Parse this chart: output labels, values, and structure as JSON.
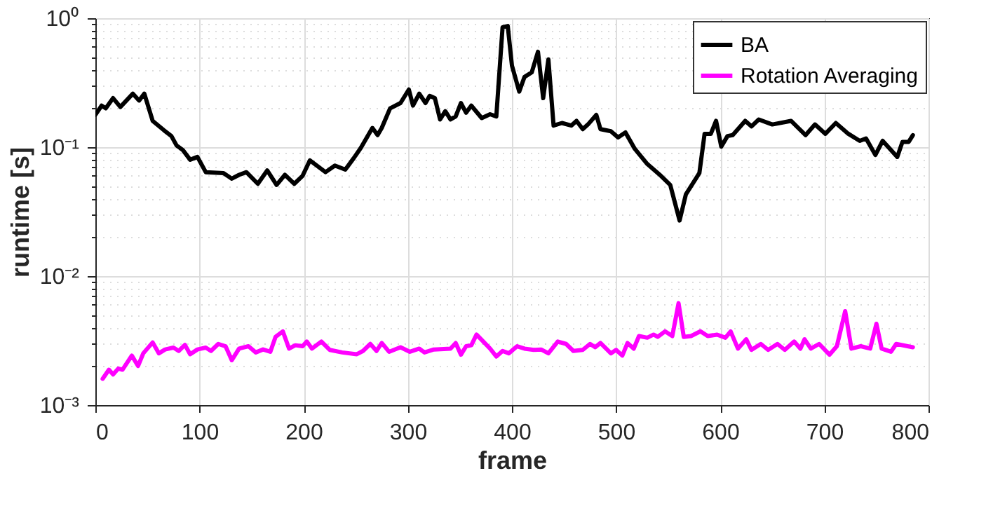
{
  "chart_data": {
    "type": "line",
    "xlabel": "frame",
    "ylabel": "runtime [s]",
    "log": "y",
    "grid": true,
    "legend": "top right",
    "line_style": "solid",
    "marker": "none",
    "xlim": [
      0,
      800
    ],
    "xticks": [
      0,
      100,
      200,
      300,
      400,
      500,
      600,
      700,
      800
    ],
    "ylim": [
      0.001,
      1
    ],
    "yticks": [
      {
        "value": 0.001,
        "label": "10⁻³"
      },
      {
        "value": 0.002,
        "label": null
      },
      {
        "value": 0.003,
        "label": null
      },
      {
        "value": 0.004,
        "label": null
      },
      {
        "value": 0.005,
        "label": null
      },
      {
        "value": 0.006,
        "label": null
      },
      {
        "value": 0.007,
        "label": null
      },
      {
        "value": 0.008,
        "label": null
      },
      {
        "value": 0.009,
        "label": null
      },
      {
        "value": 0.01,
        "label": "10⁻²"
      },
      {
        "value": 0.02,
        "label": null
      },
      {
        "value": 0.03,
        "label": null
      },
      {
        "value": 0.04,
        "label": null
      },
      {
        "value": 0.05,
        "label": null
      },
      {
        "value": 0.06,
        "label": null
      },
      {
        "value": 0.07,
        "label": null
      },
      {
        "value": 0.08,
        "label": null
      },
      {
        "value": 0.09,
        "label": null
      },
      {
        "value": 0.1,
        "label": "10⁻¹"
      },
      {
        "value": 0.2,
        "label": null
      },
      {
        "value": 0.3,
        "label": null
      },
      {
        "value": 0.4,
        "label": null
      },
      {
        "value": 0.5,
        "label": null
      },
      {
        "value": 0.6,
        "label": null
      },
      {
        "value": 0.7,
        "label": null
      },
      {
        "value": 0.8,
        "label": null
      },
      {
        "value": 0.9,
        "label": null
      },
      {
        "value": 1,
        "label": "10⁰"
      }
    ],
    "series": [
      {
        "name": "BA",
        "color": "#000000",
        "x": [
          0,
          6,
          10,
          17,
          24,
          36,
          42,
          47,
          55,
          66,
          73,
          78,
          84,
          91,
          98,
          106,
          123,
          131,
          138,
          145,
          156,
          165,
          174,
          182,
          191,
          199,
          206,
          221,
          230,
          240,
          248,
          255,
          266,
          271,
          275,
          283,
          293,
          301,
          305,
          311,
          317,
          321,
          326,
          331,
          336,
          341,
          346,
          351,
          356,
          361,
          371,
          379,
          385,
          391,
          396,
          400,
          407,
          412,
          419,
          425,
          430,
          435,
          440,
          448,
          457,
          462,
          468,
          473,
          481,
          485,
          495,
          502,
          509,
          518,
          530,
          543,
          552,
          561,
          567,
          580,
          585,
          591,
          596,
          601,
          607,
          612,
          624,
          630,
          637,
          650,
          668,
          682,
          691,
          701,
          711,
          723,
          734,
          740,
          749,
          756,
          770,
          775,
          781,
          785
        ],
        "values": [
          0.178,
          0.21,
          0.2,
          0.24,
          0.205,
          0.26,
          0.23,
          0.26,
          0.16,
          0.135,
          0.122,
          0.103,
          0.095,
          0.08,
          0.084,
          0.064,
          0.063,
          0.057,
          0.061,
          0.064,
          0.052,
          0.066,
          0.051,
          0.061,
          0.052,
          0.06,
          0.079,
          0.064,
          0.072,
          0.067,
          0.082,
          0.099,
          0.141,
          0.124,
          0.141,
          0.2,
          0.22,
          0.28,
          0.21,
          0.26,
          0.22,
          0.25,
          0.24,
          0.164,
          0.19,
          0.164,
          0.173,
          0.22,
          0.185,
          0.21,
          0.168,
          0.18,
          0.173,
          0.85,
          0.87,
          0.43,
          0.27,
          0.35,
          0.38,
          0.55,
          0.24,
          0.48,
          0.147,
          0.154,
          0.147,
          0.16,
          0.138,
          0.15,
          0.178,
          0.138,
          0.133,
          0.119,
          0.13,
          0.097,
          0.074,
          0.06,
          0.051,
          0.027,
          0.043,
          0.063,
          0.127,
          0.127,
          0.16,
          0.101,
          0.122,
          0.124,
          0.16,
          0.145,
          0.164,
          0.15,
          0.16,
          0.124,
          0.15,
          0.127,
          0.154,
          0.127,
          0.112,
          0.117,
          0.087,
          0.112,
          0.084,
          0.11,
          0.11,
          0.124
        ]
      },
      {
        "name": "Rotation Averaging",
        "color": "#ff00ff",
        "x": [
          7,
          13,
          17,
          22,
          26,
          35,
          41,
          46,
          55,
          61,
          67,
          75,
          80,
          86,
          91,
          98,
          106,
          111,
          118,
          125,
          131,
          138,
          147,
          154,
          161,
          168,
          173,
          180,
          186,
          192,
          199,
          203,
          208,
          217,
          225,
          237,
          251,
          257,
          264,
          270,
          275,
          282,
          293,
          302,
          311,
          316,
          325,
          341,
          346,
          351,
          356,
          361,
          366,
          379,
          385,
          391,
          397,
          405,
          412,
          421,
          428,
          435,
          444,
          452,
          459,
          468,
          475,
          480,
          485,
          495,
          500,
          506,
          511,
          517,
          522,
          530,
          536,
          540,
          547,
          554,
          560,
          565,
          572,
          581,
          588,
          597,
          605,
          610,
          617,
          625,
          630,
          639,
          646,
          655,
          662,
          671,
          677,
          681,
          687,
          695,
          705,
          712,
          720,
          726,
          735,
          744,
          750,
          755,
          764,
          769,
          785
        ],
        "values": [
          0.0016,
          0.00188,
          0.00173,
          0.00192,
          0.00188,
          0.00242,
          0.00201,
          0.00252,
          0.00306,
          0.00252,
          0.0027,
          0.00279,
          0.00263,
          0.00293,
          0.00248,
          0.0027,
          0.00279,
          0.00263,
          0.00298,
          0.00286,
          0.00223,
          0.00274,
          0.00286,
          0.00256,
          0.0027,
          0.00259,
          0.00338,
          0.00373,
          0.00274,
          0.00291,
          0.00286,
          0.00311,
          0.00274,
          0.00311,
          0.00268,
          0.00256,
          0.00248,
          0.00263,
          0.00298,
          0.00263,
          0.00303,
          0.00259,
          0.00281,
          0.00259,
          0.00274,
          0.00256,
          0.0027,
          0.00274,
          0.00303,
          0.00246,
          0.00286,
          0.00291,
          0.00352,
          0.00274,
          0.00238,
          0.00263,
          0.00252,
          0.00286,
          0.00274,
          0.00268,
          0.0027,
          0.00252,
          0.00311,
          0.00298,
          0.00263,
          0.00268,
          0.00298,
          0.00281,
          0.00303,
          0.00252,
          0.00268,
          0.00242,
          0.00303,
          0.00274,
          0.00343,
          0.00333,
          0.00352,
          0.00338,
          0.00373,
          0.00343,
          0.00617,
          0.00338,
          0.00343,
          0.00373,
          0.00343,
          0.00352,
          0.00333,
          0.00373,
          0.00274,
          0.00324,
          0.00268,
          0.00298,
          0.00268,
          0.00298,
          0.00268,
          0.00311,
          0.00274,
          0.00324,
          0.00274,
          0.00298,
          0.00246,
          0.00286,
          0.00535,
          0.00274,
          0.00286,
          0.00274,
          0.00427,
          0.00274,
          0.00259,
          0.00298,
          0.00281
        ]
      }
    ]
  }
}
